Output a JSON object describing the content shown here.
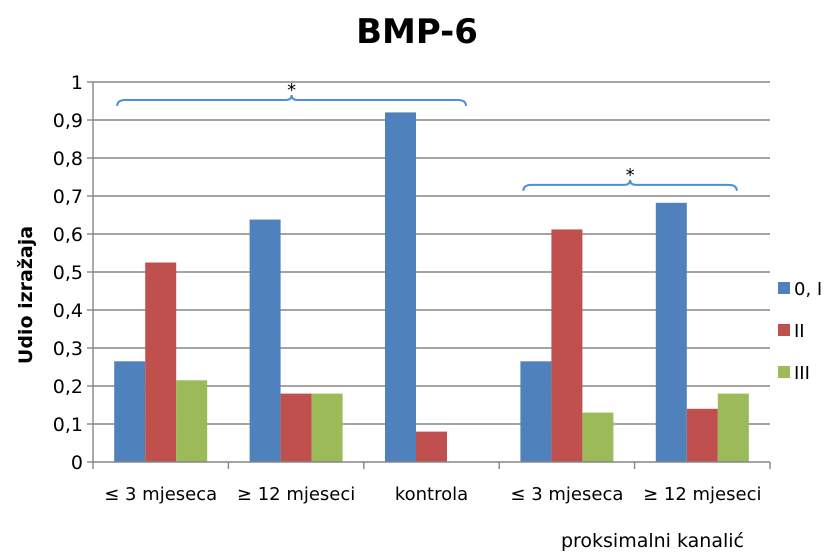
{
  "chart_data": {
    "type": "bar",
    "title": "BMP-6",
    "xlabel": "proksimalni kanalić",
    "ylabel": "Udio izražaja",
    "ylim": [
      0,
      1
    ],
    "yticks": [
      "0",
      "0,1",
      "0,2",
      "0,3",
      "0,4",
      "0,5",
      "0,6",
      "0,7",
      "0,8",
      "0,9",
      "1"
    ],
    "grid": true,
    "legend_position": "right",
    "categories": [
      "≤ 3 mjeseca",
      "≥ 12 mjeseci",
      "kontrola",
      "≤ 3 mjeseca",
      "≥ 12 mjeseci"
    ],
    "series": [
      {
        "name": "0, I",
        "color": "#4f81bd",
        "values": [
          0.265,
          0.638,
          0.92,
          0.265,
          0.682
        ]
      },
      {
        "name": "II",
        "color": "#c0504d",
        "values": [
          0.525,
          0.18,
          0.08,
          0.612,
          0.14
        ]
      },
      {
        "name": "III",
        "color": "#9bbb59",
        "values": [
          0.215,
          0.18,
          0,
          0.13,
          0.18
        ]
      }
    ],
    "significance": [
      {
        "label": "*",
        "from_category": 0,
        "to_category": 2
      },
      {
        "label": "*",
        "from_category": 3,
        "to_category": 4
      }
    ]
  }
}
